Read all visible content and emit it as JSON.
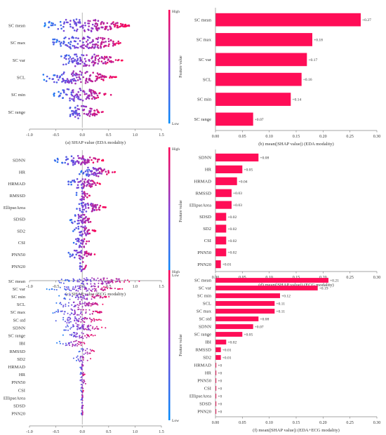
{
  "colors": {
    "high": "#ff0052",
    "low": "#008bfb",
    "bar": "#ff0d57",
    "zero_line": "#999999",
    "axis": "#888888"
  },
  "chart_data": [
    {
      "id": "a",
      "type": "scatter",
      "subtype": "beeswarm",
      "caption": "(a) SHAP value (EDA modality)",
      "features": [
        "SC mean",
        "SC max",
        "SC var",
        "SCL",
        "SC min",
        "SC range"
      ],
      "spread": [
        {
          "min": -0.8,
          "max": 1.05
        },
        {
          "min": -0.7,
          "max": 0.95
        },
        {
          "min": -0.6,
          "max": 0.85
        },
        {
          "min": -0.85,
          "max": 0.75
        },
        {
          "min": -0.6,
          "max": 0.6
        },
        {
          "min": -0.4,
          "max": 0.45
        }
      ],
      "xlim": [
        -1.0,
        1.5
      ],
      "xticks": [
        "-1.0",
        "-0.5",
        "0.0",
        "0.5",
        "1.0",
        "1.5"
      ],
      "colorbar": {
        "high": "High",
        "low": "Low",
        "label": "Feature value"
      }
    },
    {
      "id": "b",
      "type": "bar",
      "orientation": "horizontal",
      "caption": "(b) mean(|SHAP value|) (EDA modality)",
      "categories": [
        "SC mean",
        "SC max",
        "SC var",
        "SCL",
        "SC min",
        "SC range"
      ],
      "values": [
        0.27,
        0.18,
        0.17,
        0.16,
        0.14,
        0.07
      ],
      "labels": [
        "+0.27",
        "+0.18",
        "+0.17",
        "+0.16",
        "+0.14",
        "+0.07"
      ],
      "xlim": [
        0,
        0.3
      ],
      "xticks": [
        "0.00",
        "0.05",
        "0.10",
        "0.15",
        "0.20",
        "0.25",
        "0.30"
      ]
    },
    {
      "id": "c",
      "type": "scatter",
      "subtype": "beeswarm",
      "caption": "(c) SHAP value (ECG modality)",
      "features": [
        "SDNN",
        "HR",
        "HRMAD",
        "RMSSD",
        "EllipseArea",
        "SDSD",
        "SD2",
        "CSI",
        "PNN50",
        "PNN20"
      ],
      "spread": [
        {
          "min": -0.55,
          "max": 0.45
        },
        {
          "min": -0.1,
          "max": 0.65
        },
        {
          "min": -0.35,
          "max": 0.4
        },
        {
          "min": -0.15,
          "max": 0.15
        },
        {
          "min": -0.2,
          "max": 0.5
        },
        {
          "min": -0.3,
          "max": 0.3
        },
        {
          "min": -0.2,
          "max": 0.3
        },
        {
          "min": -0.2,
          "max": 0.2
        },
        {
          "min": -0.3,
          "max": 0.25
        },
        {
          "min": -0.1,
          "max": 0.1
        }
      ],
      "xlim": [
        -1.0,
        1.5
      ],
      "xticks": [
        "-1.0",
        "-0.5",
        "0.0",
        "0.5",
        "1.0",
        "1.5"
      ],
      "colorbar": {
        "high": "High",
        "low": "Low",
        "label": "Feature value"
      }
    },
    {
      "id": "d",
      "type": "bar",
      "orientation": "horizontal",
      "caption": "(d) mean(|SHAP value|) (ECG modality)",
      "categories": [
        "SDNN",
        "HR",
        "HRMAD",
        "RMSSD",
        "EllipseArea",
        "SDSD",
        "SD2",
        "CSI",
        "PNN50",
        "PNN20"
      ],
      "values": [
        0.08,
        0.05,
        0.04,
        0.03,
        0.03,
        0.02,
        0.02,
        0.02,
        0.02,
        0.01
      ],
      "labels": [
        "+0.08",
        "+0.05",
        "+0.04",
        "+0.03",
        "+0.03",
        "+0.02",
        "+0.02",
        "+0.02",
        "+0.02",
        "+0.01"
      ],
      "xlim": [
        0,
        0.3
      ],
      "xticks": [
        "0.00",
        "0.05",
        "0.10",
        "0.15",
        "0.20",
        "0.25",
        "0.30"
      ]
    },
    {
      "id": "e",
      "type": "scatter",
      "subtype": "beeswarm",
      "caption": "(e) SHAP value (EDA+ECG modality)",
      "features": [
        "SC mean",
        "SC var",
        "SC min",
        "SCL",
        "SC max",
        "SC std",
        "SDNN",
        "SC range",
        "IBI",
        "RMSSD",
        "SD2",
        "HRMAD",
        "HR",
        "PNN50",
        "CSI",
        "EllipseArea",
        "SDSD",
        "PNN20"
      ],
      "spread": [
        {
          "min": -0.6,
          "max": 1.2
        },
        {
          "min": -0.7,
          "max": 0.85
        },
        {
          "min": -0.55,
          "max": 0.6
        },
        {
          "min": -0.6,
          "max": 0.5
        },
        {
          "min": -0.65,
          "max": 0.5
        },
        {
          "min": -0.6,
          "max": 0.45
        },
        {
          "min": -0.5,
          "max": 0.55
        },
        {
          "min": -0.4,
          "max": 0.3
        },
        {
          "min": -0.5,
          "max": 0.15
        },
        {
          "min": -0.1,
          "max": 0.25
        },
        {
          "min": -0.2,
          "max": 0.2
        },
        {
          "min": -0.05,
          "max": 0.05
        },
        {
          "min": -0.05,
          "max": 0.05
        },
        {
          "min": -0.08,
          "max": 0.1
        },
        {
          "min": -0.03,
          "max": 0.03
        },
        {
          "min": -0.03,
          "max": 0.03
        },
        {
          "min": -0.02,
          "max": 0.02
        },
        {
          "min": -0.02,
          "max": 0.02
        }
      ],
      "xlim": [
        -1.0,
        1.5
      ],
      "xticks": [
        "-1.0",
        "-0.5",
        "0.0",
        "0.5",
        "1.0",
        "1.5"
      ],
      "colorbar": {
        "high": "High",
        "low": "Low",
        "label": "Feature value"
      }
    },
    {
      "id": "f",
      "type": "bar",
      "orientation": "horizontal",
      "caption": "(f) mean(|SHAP value|) (EDA+ECG modality)",
      "categories": [
        "SC mean",
        "SC var",
        "SC min",
        "SCL",
        "SC max",
        "SC std",
        "SDNN",
        "SC range",
        "IBI",
        "RMSSD",
        "SD2",
        "HRMAD",
        "HR",
        "PNN50",
        "CSI",
        "EllipseArea",
        "SDSD",
        "PNN20"
      ],
      "values": [
        0.21,
        0.19,
        0.12,
        0.11,
        0.11,
        0.08,
        0.07,
        0.05,
        0.02,
        0.01,
        0.01,
        0,
        0,
        0,
        0,
        0,
        0,
        0
      ],
      "labels": [
        "+0.21",
        "+0.19",
        "+0.12",
        "+0.11",
        "+0.11",
        "+0.08",
        "+0.07",
        "+0.05",
        "+0.02",
        "+0.01",
        "+0.01",
        "+0",
        "+0",
        "+0",
        "+0",
        "+0",
        "+0",
        "+0"
      ],
      "xlim": [
        0,
        0.3
      ],
      "xticks": [
        "0.00",
        "0.05",
        "0.10",
        "0.15",
        "0.20",
        "0.25",
        "0.30"
      ]
    }
  ]
}
